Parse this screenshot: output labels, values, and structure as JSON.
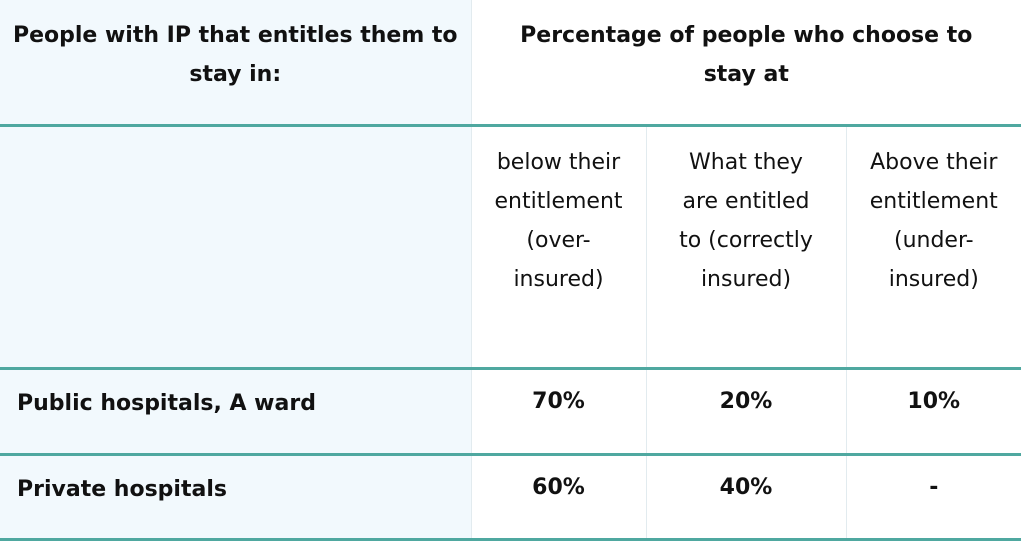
{
  "header": {
    "left": "People with IP that entitles them to stay in:",
    "right": "Percentage of people who choose to stay at"
  },
  "subheaders": [
    "below their entitlement (over-insured)",
    "What they are entitled to (correctly insured)",
    "Above their entitlement (under-insured)"
  ],
  "rows": [
    {
      "label": "Public hospitals, A ward",
      "values": [
        "70%",
        "20%",
        "10%"
      ]
    },
    {
      "label": "Private hospitals",
      "values": [
        "60%",
        "40%",
        "-"
      ]
    }
  ]
}
